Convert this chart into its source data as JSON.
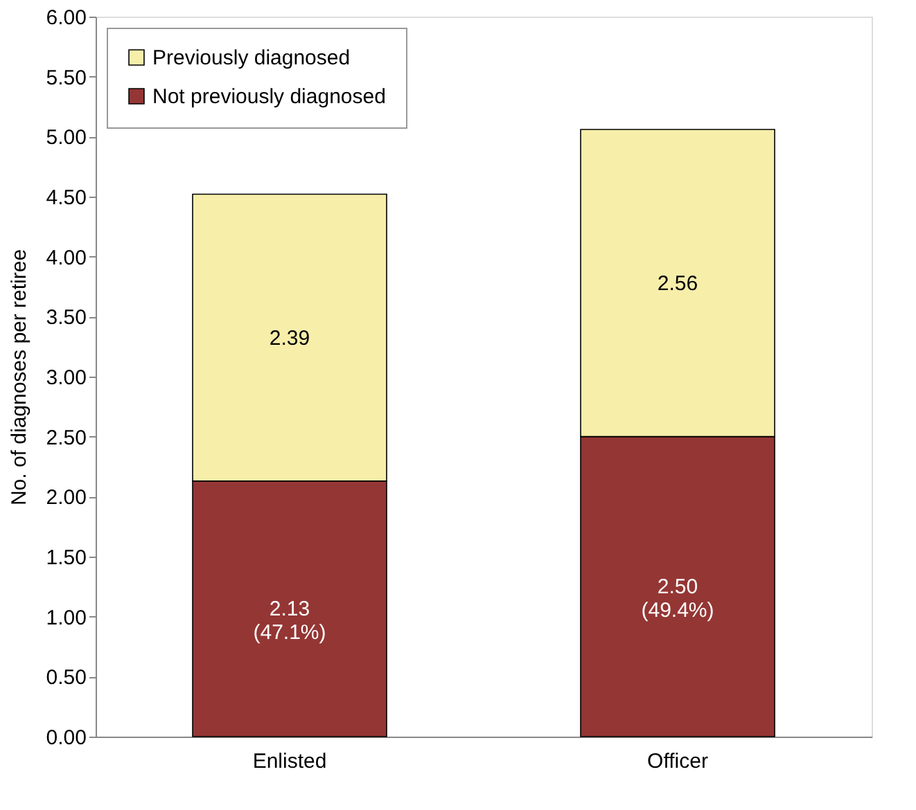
{
  "chart_data": {
    "type": "bar",
    "stacked": true,
    "ylabel": "No. of diagnoses per retiree",
    "categories": [
      "Enlisted",
      "Officer"
    ],
    "series": [
      {
        "name": "Not previously diagnosed",
        "color": "#943634",
        "values": [
          2.13,
          2.5
        ],
        "value_labels": [
          "2.13\n(47.1%)",
          "2.50\n(49.4%)"
        ]
      },
      {
        "name": "Previously diagnosed",
        "color": "#f7eeaa",
        "values": [
          2.39,
          2.56
        ],
        "value_labels": [
          "2.39",
          "2.56"
        ]
      }
    ],
    "ylim": [
      0,
      6
    ],
    "yticks": [
      {
        "value": 0,
        "label": "0.00"
      },
      {
        "value": 0.5,
        "label": "0.50"
      },
      {
        "value": 1,
        "label": "1.00"
      },
      {
        "value": 1.5,
        "label": "1.50"
      },
      {
        "value": 2,
        "label": "2.00"
      },
      {
        "value": 2.5,
        "label": "2.50"
      },
      {
        "value": 3,
        "label": "3.00"
      },
      {
        "value": 3.5,
        "label": "3.50"
      },
      {
        "value": 4,
        "label": "4.00"
      },
      {
        "value": 4.5,
        "label": "4.50"
      },
      {
        "value": 5,
        "label": "5.00"
      },
      {
        "value": 5.5,
        "label": "5.50"
      },
      {
        "value": 6,
        "label": "6.00"
      }
    ],
    "grid": false,
    "legend": "top left"
  }
}
